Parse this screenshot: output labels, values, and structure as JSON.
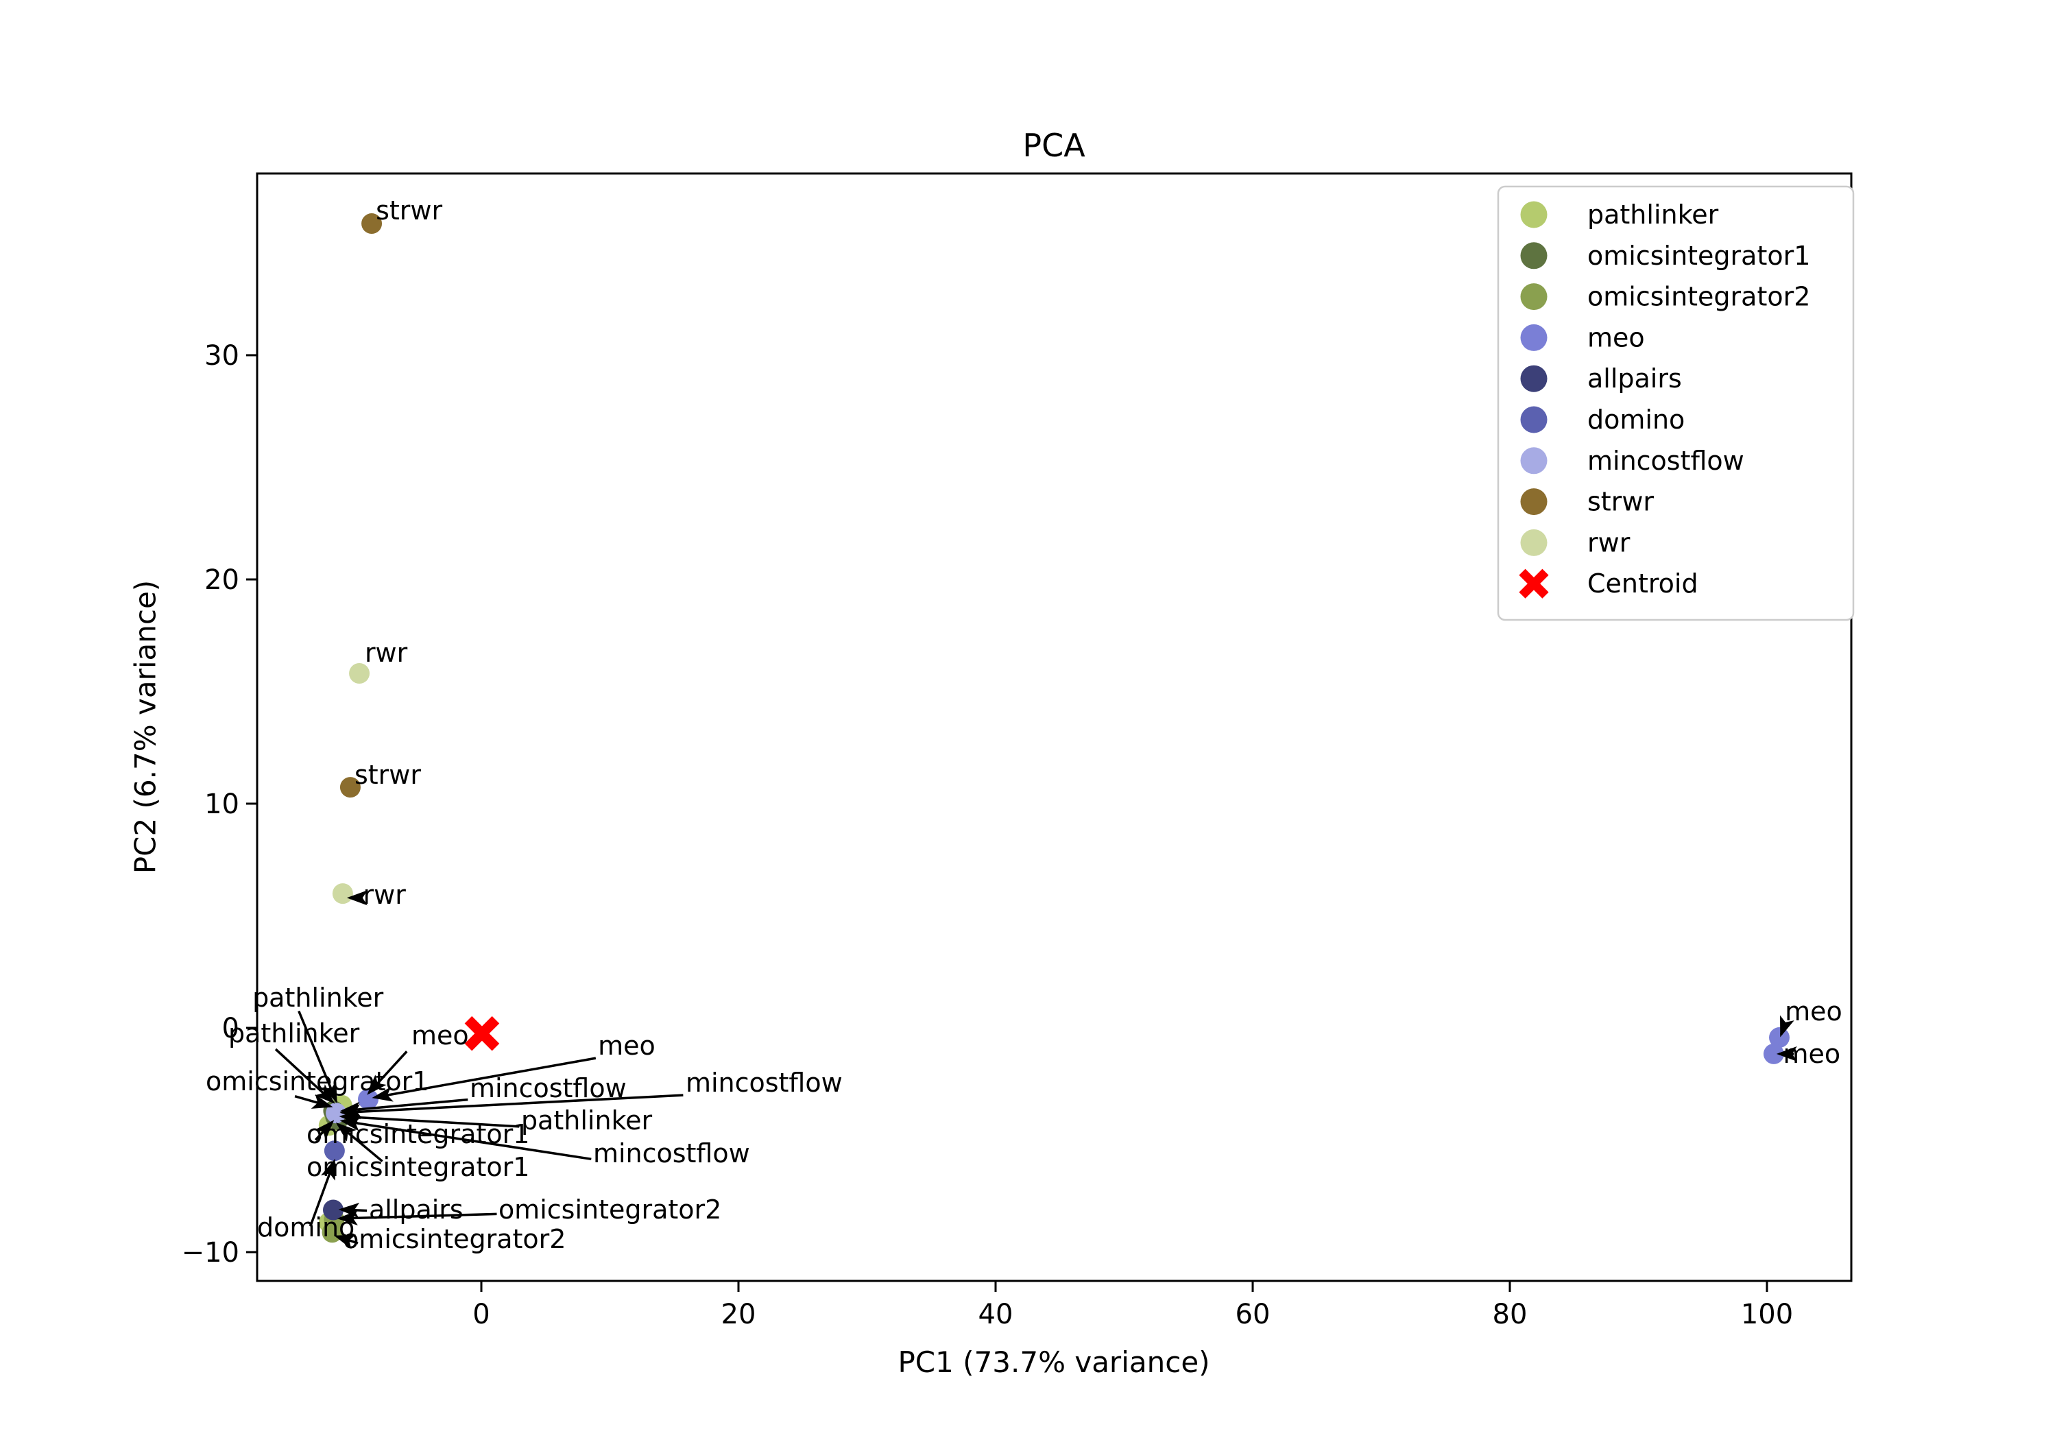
{
  "chart_data": {
    "type": "scatter",
    "title": "PCA",
    "xlabel": "PC1 (73.7% variance)",
    "ylabel": "PC2 (6.7% variance)",
    "xticks": [
      0,
      20,
      40,
      60,
      80,
      100
    ],
    "yticks": [
      30,
      20,
      10,
      0,
      -10
    ],
    "xlim": [
      -17.4,
      106.6
    ],
    "ylim": [
      -11.3,
      38.3
    ],
    "grid": false,
    "legend_position": "upper right",
    "series": [
      {
        "name": "pathlinker",
        "color": "#b5cb6e",
        "points": [
          [
            -11.85,
            -4.35
          ],
          [
            -10.85,
            -3.45
          ],
          [
            -11.85,
            -8.68
          ]
        ]
      },
      {
        "name": "omicsintegrator1",
        "color": "#5e7340",
        "points": [
          [
            -11.35,
            -3.95
          ],
          [
            -11.15,
            -4.1
          ],
          [
            -11.5,
            -3.7
          ]
        ]
      },
      {
        "name": "omicsintegrator2",
        "color": "#8aa04f",
        "points": [
          [
            -11.6,
            -9.12
          ],
          [
            -11.45,
            -8.55
          ]
        ]
      },
      {
        "name": "meo",
        "color": "#7a7fd6",
        "points": [
          [
            -8.8,
            -3.18
          ],
          [
            100.96,
            -0.43
          ],
          [
            100.53,
            -1.16
          ]
        ]
      },
      {
        "name": "allpairs",
        "color": "#3c4078",
        "points": [
          [
            -11.52,
            -8.12
          ]
        ]
      },
      {
        "name": "domino",
        "color": "#5b61b0",
        "points": [
          [
            -11.42,
            -5.48
          ]
        ]
      },
      {
        "name": "mincostflow",
        "color": "#a7abe4",
        "points": [
          [
            -11.3,
            -3.8
          ]
        ]
      },
      {
        "name": "strwr",
        "color": "#8b6d2e",
        "points": [
          [
            -8.53,
            35.87
          ],
          [
            -10.19,
            10.73
          ]
        ]
      },
      {
        "name": "rwr",
        "color": "#ced9a2",
        "points": [
          [
            -9.49,
            15.81
          ],
          [
            -10.78,
            5.99
          ]
        ]
      }
    ],
    "centroid": {
      "label": "Centroid",
      "color": "#ff0000",
      "point": [
        0.05,
        -0.25
      ]
    },
    "annotations": [
      {
        "text": "strwr",
        "x": -8.21,
        "y": 36.06,
        "arrow": null
      },
      {
        "text": "rwr",
        "x": -9.07,
        "y": 16.33,
        "arrow": null
      },
      {
        "text": "strwr",
        "x": -9.87,
        "y": 10.89,
        "arrow": null
      },
      {
        "text": "rwr",
        "x": -9.2,
        "y": 5.54,
        "arrow": {
          "from": [
            -9.35,
            5.8
          ],
          "to": [
            -10.25,
            5.8
          ]
        }
      },
      {
        "text": "pathlinker",
        "x": -17.81,
        "y": 0.95,
        "arrow": {
          "from": [
            -14.2,
            0.75
          ],
          "to": [
            -11.3,
            -3.25
          ]
        }
      },
      {
        "text": "pathlinker",
        "x": -19.68,
        "y": -0.64,
        "arrow": {
          "from": [
            -16.0,
            -0.95
          ],
          "to": [
            -11.55,
            -3.3
          ]
        }
      },
      {
        "text": "meo",
        "x": -5.44,
        "y": -0.73,
        "arrow": {
          "from": [
            -5.8,
            -1.05
          ],
          "to": [
            -8.75,
            -2.9
          ]
        }
      },
      {
        "text": "meo",
        "x": 9.07,
        "y": -1.19,
        "arrow": {
          "from": [
            8.9,
            -1.35
          ],
          "to": [
            -8.3,
            -3.1
          ]
        }
      },
      {
        "text": "omicsintegrator1",
        "x": -21.44,
        "y": -2.78,
        "arrow": {
          "from": [
            -14.5,
            -3.05
          ],
          "to": [
            -11.75,
            -3.5
          ]
        }
      },
      {
        "text": "mincostflow",
        "x": -0.91,
        "y": -3.09,
        "arrow": {
          "from": [
            -1.05,
            -3.2
          ],
          "to": [
            -10.8,
            -3.7
          ]
        }
      },
      {
        "text": "mincostflow",
        "x": 15.89,
        "y": -2.84,
        "arrow": {
          "from": [
            15.7,
            -3.0
          ],
          "to": [
            -10.8,
            -3.78
          ]
        }
      },
      {
        "text": "pathlinker",
        "x": 3.09,
        "y": -4.53,
        "arrow": {
          "from": [
            2.95,
            -4.4
          ],
          "to": [
            -10.85,
            -3.95
          ]
        }
      },
      {
        "text": "omicsintegrator1",
        "x": -13.6,
        "y": -5.14,
        "arrow": {
          "from": [
            -12.9,
            -5.0
          ],
          "to": [
            -11.6,
            -4.2
          ]
        }
      },
      {
        "text": "omicsintegrator1",
        "x": -13.6,
        "y": -6.61,
        "arrow": {
          "from": [
            -7.7,
            -5.95
          ],
          "to": [
            -11.15,
            -4.3
          ]
        }
      },
      {
        "text": "mincostflow",
        "x": 8.69,
        "y": -5.99,
        "arrow": {
          "from": [
            8.55,
            -5.85
          ],
          "to": [
            -10.8,
            -4.15
          ]
        }
      },
      {
        "text": "allpairs",
        "x": -8.75,
        "y": -8.5,
        "arrow": {
          "from": [
            -8.9,
            -8.15
          ],
          "to": [
            -10.9,
            -8.1
          ]
        }
      },
      {
        "text": "omicsintegrator2",
        "x": 1.33,
        "y": -8.5,
        "arrow": {
          "from": [
            1.2,
            -8.3
          ],
          "to": [
            -11.0,
            -8.5
          ]
        }
      },
      {
        "text": "domino",
        "x": -17.44,
        "y": -9.3,
        "arrow": {
          "from": [
            -13.3,
            -8.85
          ],
          "to": [
            -11.45,
            -5.95
          ]
        }
      },
      {
        "text": "omicsintegrator2",
        "x": -10.77,
        "y": -9.82,
        "arrow": {
          "from": [
            -9.6,
            -9.6
          ],
          "to": [
            -11.25,
            -9.3
          ]
        }
      },
      {
        "text": "meo",
        "x": 101.39,
        "y": 0.34,
        "arrow": {
          "from": [
            101.35,
            0.1
          ],
          "to": [
            101.1,
            -0.3
          ]
        }
      },
      {
        "text": "meo",
        "x": 101.25,
        "y": -1.56,
        "arrow": {
          "from": [
            102.1,
            -1.16
          ],
          "to": [
            100.95,
            -1.16
          ]
        }
      }
    ],
    "legend": [
      {
        "label": "pathlinker",
        "color": "#b5cb6e",
        "marker": "circle"
      },
      {
        "label": "omicsintegrator1",
        "color": "#5e7340",
        "marker": "circle"
      },
      {
        "label": "omicsintegrator2",
        "color": "#8aa04f",
        "marker": "circle"
      },
      {
        "label": "meo",
        "color": "#7a7fd6",
        "marker": "circle"
      },
      {
        "label": "allpairs",
        "color": "#3c4078",
        "marker": "circle"
      },
      {
        "label": "domino",
        "color": "#5b61b0",
        "marker": "circle"
      },
      {
        "label": "mincostflow",
        "color": "#a7abe4",
        "marker": "circle"
      },
      {
        "label": "strwr",
        "color": "#8b6d2e",
        "marker": "circle"
      },
      {
        "label": "rwr",
        "color": "#ced9a2",
        "marker": "circle"
      },
      {
        "label": "Centroid",
        "color": "#ff0000",
        "marker": "cross"
      }
    ]
  }
}
